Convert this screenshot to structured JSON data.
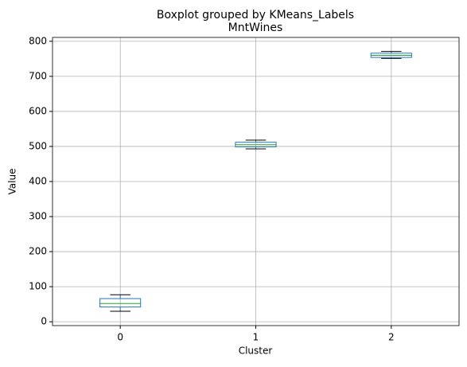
{
  "chart_data": {
    "type": "boxplot",
    "suptitle": "Boxplot grouped by KMeans_Labels",
    "title": "MntWines",
    "x_label": "Cluster",
    "y_label": "Value",
    "categories": [
      "0",
      "1",
      "2"
    ],
    "boxes": [
      {
        "low": 30,
        "q1": 42,
        "median": 52,
        "q3": 66,
        "high": 77
      },
      {
        "low": 493,
        "q1": 499,
        "median": 505,
        "q3": 512,
        "high": 518
      },
      {
        "low": 751,
        "q1": 754,
        "median": 760,
        "q3": 766,
        "high": 771
      }
    ],
    "box_color": "#1f77b4",
    "median_color": "#2ca02c",
    "cap_color": "#000000",
    "ylim": [
      -11,
      811
    ],
    "yticks": [
      0,
      100,
      200,
      300,
      400,
      500,
      600,
      700,
      800
    ],
    "grid": true
  }
}
